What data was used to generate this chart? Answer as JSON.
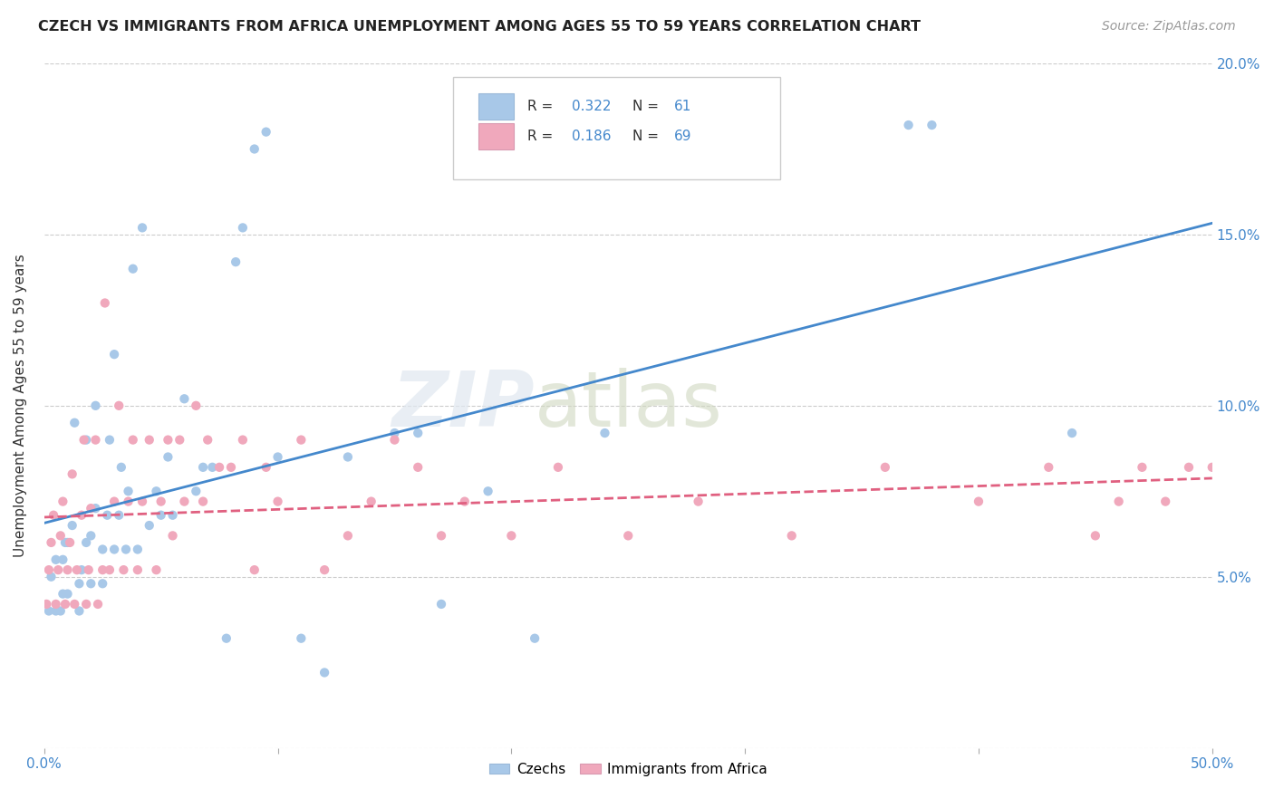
{
  "title": "CZECH VS IMMIGRANTS FROM AFRICA UNEMPLOYMENT AMONG AGES 55 TO 59 YEARS CORRELATION CHART",
  "source": "Source: ZipAtlas.com",
  "ylabel": "Unemployment Among Ages 55 to 59 years",
  "xlim": [
    0,
    0.5
  ],
  "ylim": [
    0,
    0.2
  ],
  "xticks": [
    0.0,
    0.1,
    0.2,
    0.3,
    0.4,
    0.5
  ],
  "xticklabels": [
    "0.0%",
    "",
    "",
    "",
    "",
    "50.0%"
  ],
  "yticks": [
    0.0,
    0.05,
    0.1,
    0.15,
    0.2
  ],
  "yticklabels_right": [
    "",
    "5.0%",
    "10.0%",
    "15.0%",
    "20.0%"
  ],
  "czech_color": "#a8c8e8",
  "africa_color": "#f0a8bc",
  "czech_line_color": "#4488cc",
  "africa_line_color": "#e06080",
  "czech_scatter_x": [
    0.002,
    0.003,
    0.005,
    0.005,
    0.007,
    0.008,
    0.008,
    0.009,
    0.01,
    0.01,
    0.012,
    0.013,
    0.015,
    0.015,
    0.016,
    0.018,
    0.018,
    0.02,
    0.02,
    0.022,
    0.022,
    0.025,
    0.025,
    0.027,
    0.028,
    0.03,
    0.03,
    0.032,
    0.033,
    0.035,
    0.036,
    0.038,
    0.04,
    0.042,
    0.045,
    0.048,
    0.05,
    0.053,
    0.055,
    0.06,
    0.065,
    0.068,
    0.072,
    0.078,
    0.082,
    0.085,
    0.09,
    0.095,
    0.1,
    0.11,
    0.12,
    0.13,
    0.15,
    0.16,
    0.17,
    0.19,
    0.21,
    0.24,
    0.37,
    0.38,
    0.44
  ],
  "czech_scatter_y": [
    0.04,
    0.05,
    0.04,
    0.055,
    0.04,
    0.045,
    0.055,
    0.06,
    0.045,
    0.06,
    0.065,
    0.095,
    0.04,
    0.048,
    0.052,
    0.09,
    0.06,
    0.048,
    0.062,
    0.07,
    0.1,
    0.048,
    0.058,
    0.068,
    0.09,
    0.115,
    0.058,
    0.068,
    0.082,
    0.058,
    0.075,
    0.14,
    0.058,
    0.152,
    0.065,
    0.075,
    0.068,
    0.085,
    0.068,
    0.102,
    0.075,
    0.082,
    0.082,
    0.032,
    0.142,
    0.152,
    0.175,
    0.18,
    0.085,
    0.032,
    0.022,
    0.085,
    0.092,
    0.092,
    0.042,
    0.075,
    0.032,
    0.092,
    0.182,
    0.182,
    0.092
  ],
  "africa_scatter_x": [
    0.001,
    0.002,
    0.003,
    0.004,
    0.005,
    0.006,
    0.007,
    0.008,
    0.009,
    0.01,
    0.011,
    0.012,
    0.013,
    0.014,
    0.016,
    0.017,
    0.018,
    0.019,
    0.02,
    0.022,
    0.023,
    0.025,
    0.026,
    0.028,
    0.03,
    0.032,
    0.034,
    0.036,
    0.038,
    0.04,
    0.042,
    0.045,
    0.048,
    0.05,
    0.053,
    0.055,
    0.058,
    0.06,
    0.065,
    0.068,
    0.07,
    0.075,
    0.08,
    0.085,
    0.09,
    0.095,
    0.1,
    0.11,
    0.12,
    0.13,
    0.14,
    0.15,
    0.16,
    0.17,
    0.18,
    0.2,
    0.22,
    0.25,
    0.28,
    0.32,
    0.36,
    0.4,
    0.43,
    0.45,
    0.46,
    0.47,
    0.48,
    0.49,
    0.5
  ],
  "africa_scatter_y": [
    0.042,
    0.052,
    0.06,
    0.068,
    0.042,
    0.052,
    0.062,
    0.072,
    0.042,
    0.052,
    0.06,
    0.08,
    0.042,
    0.052,
    0.068,
    0.09,
    0.042,
    0.052,
    0.07,
    0.09,
    0.042,
    0.052,
    0.13,
    0.052,
    0.072,
    0.1,
    0.052,
    0.072,
    0.09,
    0.052,
    0.072,
    0.09,
    0.052,
    0.072,
    0.09,
    0.062,
    0.09,
    0.072,
    0.1,
    0.072,
    0.09,
    0.082,
    0.082,
    0.09,
    0.052,
    0.082,
    0.072,
    0.09,
    0.052,
    0.062,
    0.072,
    0.09,
    0.082,
    0.062,
    0.072,
    0.062,
    0.082,
    0.062,
    0.072,
    0.062,
    0.082,
    0.072,
    0.082,
    0.062,
    0.072,
    0.082,
    0.072,
    0.082,
    0.082
  ]
}
